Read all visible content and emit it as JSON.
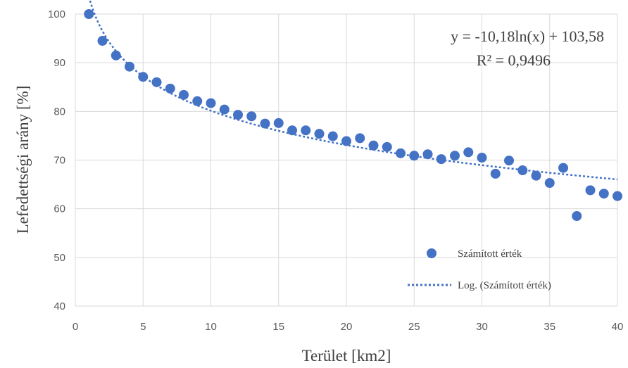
{
  "chart_data": {
    "type": "scatter",
    "xlabel": "Terület [km2]",
    "ylabel": "Lefedettségi arány [%]",
    "xlim": [
      0,
      40
    ],
    "ylim": [
      40,
      100
    ],
    "xticks": [
      "0",
      "5",
      "10",
      "15",
      "20",
      "25",
      "30",
      "35",
      "40"
    ],
    "yticks": [
      "40",
      "50",
      "60",
      "70",
      "80",
      "90",
      "100"
    ],
    "grid": true,
    "legend_position": "bottom-right",
    "series": [
      {
        "name": "Számított érték",
        "color": "#4472c4",
        "marker": "circle",
        "x": [
          1,
          2,
          3,
          4,
          5,
          6,
          7,
          8,
          9,
          10,
          11,
          12,
          13,
          14,
          15,
          16,
          17,
          18,
          19,
          20,
          21,
          22,
          23,
          24,
          25,
          26,
          27,
          28,
          29,
          30,
          31,
          32,
          33,
          34,
          35,
          36,
          37,
          38,
          39,
          40
        ],
        "y": [
          100,
          94.5,
          91.5,
          89.2,
          87.1,
          86.0,
          84.7,
          83.4,
          82.1,
          81.7,
          80.4,
          79.3,
          79.0,
          77.5,
          77.6,
          76.1,
          76.1,
          75.4,
          74.9,
          73.9,
          74.5,
          73.0,
          72.7,
          71.4,
          70.9,
          71.2,
          70.2,
          70.9,
          71.6,
          70.5,
          67.2,
          69.9,
          67.9,
          66.8,
          65.3,
          68.4,
          58.5,
          63.8,
          63.1,
          62.6
        ]
      },
      {
        "name": "Log. (Számított érték)",
        "color": "#4472c4",
        "style": "dotted",
        "fit": "logarithmic",
        "a": -10.18,
        "b": 103.58
      }
    ],
    "annotations": {
      "equation": "y = -10,18ln(x) + 103,58",
      "r_squared": "R² = 0,9496"
    }
  }
}
